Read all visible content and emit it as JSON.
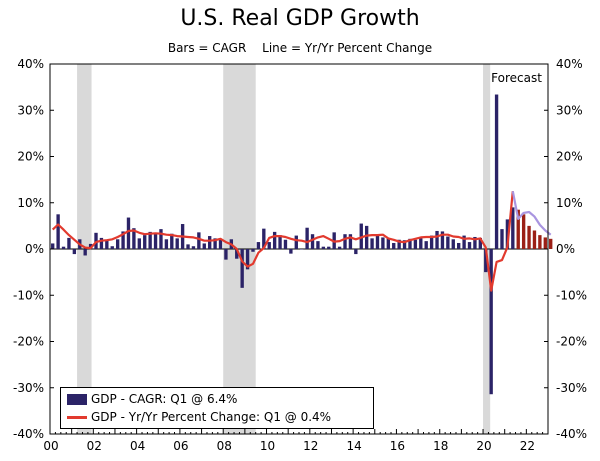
{
  "title": "U.S. Real GDP Growth",
  "subtitle": {
    "left": "Bars = CAGR",
    "right": "Line = Yr/Yr Percent Change"
  },
  "forecast_label": "Forecast",
  "legend": {
    "bars": "GDP - CAGR: Q1 @ 6.4%",
    "line": "GDP - Yr/Yr Percent Change: Q1 @ 0.4%"
  },
  "colors": {
    "bars_actual": "#2b2367",
    "bars_forecast": "#9b2016",
    "line_actual": "#e23a2e",
    "line_forecast": "#a995e0",
    "recession": "#d9d9d9"
  },
  "chart_data": {
    "type": "bar",
    "x_ticks": [
      "00",
      "02",
      "04",
      "06",
      "08",
      "10",
      "12",
      "14",
      "16",
      "18",
      "20",
      "22"
    ],
    "y_ticks": [
      "40%",
      "30%",
      "20%",
      "10%",
      "0%",
      "-10%",
      "-20%",
      "-30%",
      "-40%"
    ],
    "ylim": [
      -40,
      40
    ],
    "xlim": [
      2000.0,
      2023.0
    ],
    "grid": false,
    "legend_position": "bottom-left",
    "recessions": [
      [
        2001.25,
        2001.92
      ],
      [
        2008.0,
        2009.5
      ],
      [
        2020.0,
        2020.33
      ]
    ],
    "forecast_start": 2021.5,
    "series": [
      {
        "name": "GDP - CAGR",
        "type": "bar",
        "start": 2000.0,
        "step": 0.25,
        "actual_count": 86,
        "values": [
          1.2,
          7.5,
          0.5,
          2.4,
          -1.1,
          2.1,
          -1.4,
          1.1,
          3.5,
          2.4,
          1.8,
          0.6,
          2.1,
          3.8,
          6.8,
          4.5,
          2.3,
          3.0,
          3.7,
          3.5,
          4.3,
          2.1,
          3.3,
          2.3,
          5.4,
          1.0,
          0.6,
          3.6,
          1.2,
          2.8,
          2.3,
          2.2,
          -2.3,
          2.1,
          -2.1,
          -8.4,
          -4.4,
          -0.6,
          1.5,
          4.4,
          1.5,
          3.7,
          3.0,
          2.0,
          -1.0,
          2.9,
          -0.1,
          4.6,
          3.2,
          1.7,
          0.5,
          0.5,
          3.6,
          0.5,
          3.2,
          3.2,
          -1.1,
          5.5,
          5.0,
          2.3,
          3.2,
          2.5,
          2.3,
          1.3,
          2.0,
          1.9,
          2.2,
          2.0,
          2.3,
          1.7,
          2.9,
          3.9,
          3.8,
          2.7,
          2.1,
          1.3,
          2.9,
          1.5,
          2.6,
          2.4,
          -5.0,
          -31.4,
          33.4,
          4.3,
          6.4,
          9.0,
          8.5,
          7.5,
          5.0,
          4.0,
          3.0,
          2.5,
          2.2
        ]
      },
      {
        "name": "GDP - Yr/Yr Percent Change",
        "type": "line",
        "start": 2000.0,
        "step": 0.25,
        "forecast_from_index": 85,
        "values": [
          4.2,
          5.3,
          4.2,
          3.0,
          2.0,
          1.0,
          0.3,
          0.2,
          1.5,
          1.8,
          1.9,
          2.1,
          2.6,
          3.2,
          3.9,
          4.0,
          3.5,
          3.2,
          3.3,
          3.4,
          3.3,
          3.1,
          3.0,
          2.8,
          2.7,
          2.6,
          2.5,
          2.2,
          1.8,
          1.8,
          1.9,
          2.2,
          1.5,
          1.0,
          0.0,
          -2.7,
          -3.8,
          -3.2,
          -0.8,
          0.2,
          2.4,
          2.8,
          2.8,
          2.6,
          2.2,
          1.9,
          1.8,
          1.5,
          2.0,
          2.5,
          2.8,
          2.2,
          1.6,
          1.7,
          2.2,
          2.5,
          2.1,
          2.5,
          2.9,
          3.0,
          3.0,
          3.1,
          2.3,
          2.0,
          1.6,
          1.5,
          1.9,
          2.2,
          2.5,
          2.6,
          2.6,
          2.7,
          3.1,
          3.1,
          2.7,
          2.6,
          2.2,
          2.3,
          2.1,
          2.3,
          0.3,
          -9.0,
          -2.8,
          -2.4,
          0.4,
          12.5,
          6.5,
          7.8,
          8.0,
          7.0,
          5.2,
          4.0,
          3.1
        ]
      }
    ]
  }
}
